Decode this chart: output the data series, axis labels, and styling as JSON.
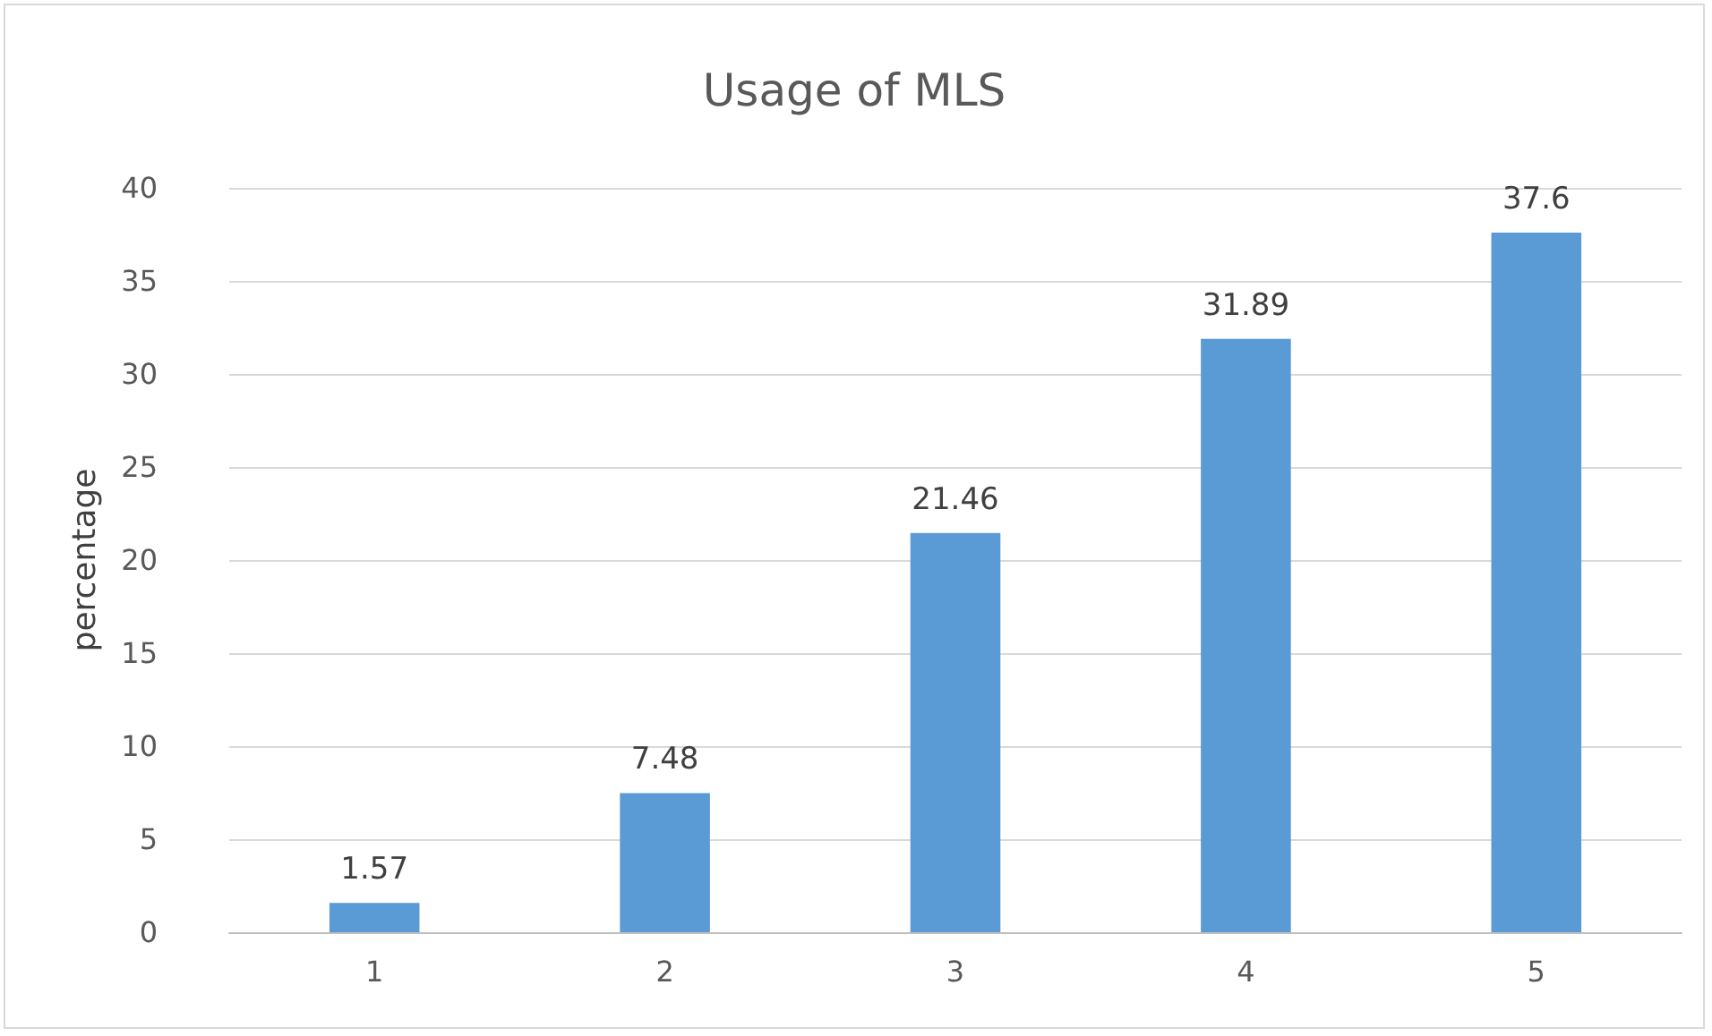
{
  "chart_data": {
    "type": "bar",
    "title": "Usage of MLS",
    "ylabel": "percentage",
    "categories": [
      "1",
      "2",
      "3",
      "4",
      "5"
    ],
    "values": [
      1.57,
      7.48,
      21.46,
      31.89,
      37.6
    ],
    "color": "#5b9bd5",
    "ylim": [
      0,
      40
    ],
    "yticks": [
      0,
      5,
      10,
      15,
      20,
      25,
      30,
      35,
      40
    ],
    "grid": "y",
    "data_labels": true
  }
}
